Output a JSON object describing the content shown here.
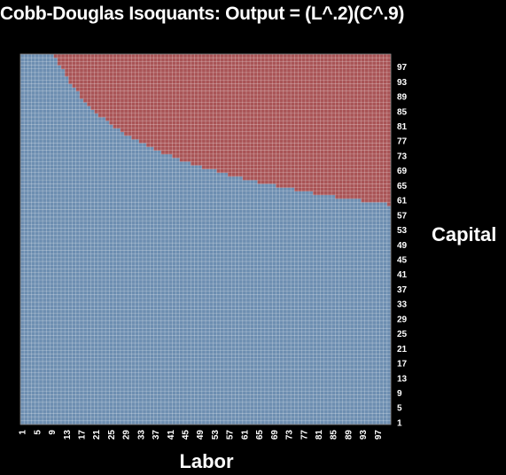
{
  "chart_data": {
    "type": "heatmap",
    "title": "Cobb-Douglas Isoquants: Output = (L^.2)(C^.9)",
    "xlabel": "Labor",
    "ylabel": "Capital",
    "x_min": 1,
    "x_max": 100,
    "y_min": 1,
    "y_max": 100,
    "x_ticks": [
      1,
      5,
      9,
      13,
      17,
      21,
      25,
      29,
      33,
      37,
      41,
      45,
      49,
      53,
      57,
      61,
      65,
      69,
      73,
      77,
      81,
      85,
      89,
      93,
      97
    ],
    "y_ticks": [
      1,
      5,
      9,
      13,
      17,
      21,
      25,
      29,
      33,
      37,
      41,
      45,
      49,
      53,
      57,
      61,
      65,
      69,
      73,
      77,
      81,
      85,
      89,
      93,
      97
    ],
    "y_axis_position": "right",
    "grid": true,
    "function": "L^0.2 * C^0.9",
    "bands": [
      {
        "min": 0,
        "max": 100,
        "color": "#6d8eb1"
      },
      {
        "min": 100,
        "max": 200,
        "color": "#a95456"
      },
      {
        "min": 200,
        "max": 300,
        "color": "#a7ad6c"
      },
      {
        "min": 300,
        "max": 400,
        "color": "#7c6f99"
      }
    ]
  }
}
